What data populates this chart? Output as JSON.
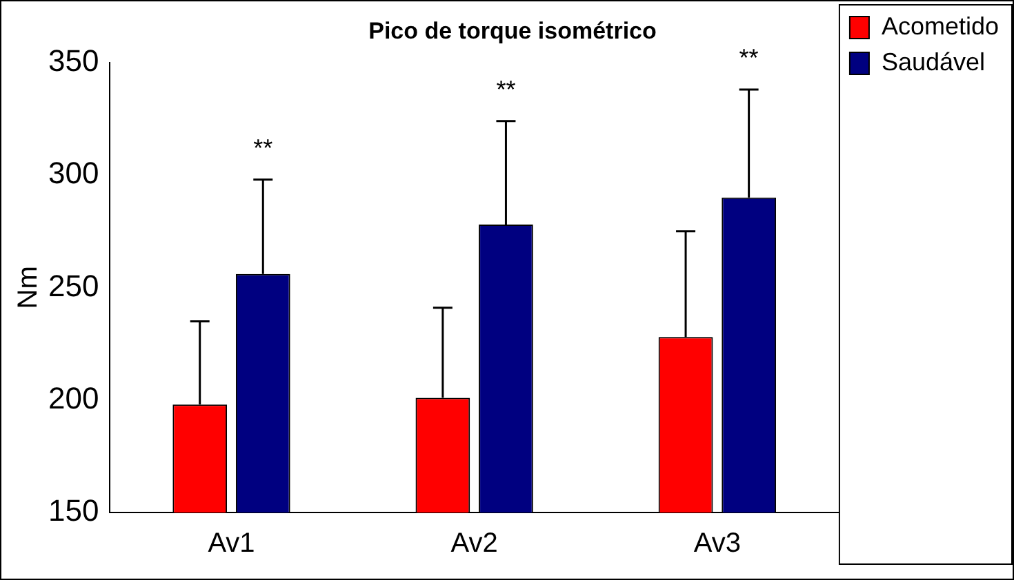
{
  "chart_data": {
    "type": "bar",
    "title": "Pico de torque isométrico",
    "ylabel": "Nm",
    "categories": [
      "Av1",
      "Av2",
      "Av3"
    ],
    "series": [
      {
        "name": "Acometido",
        "color": "#ff0000",
        "values": [
          198,
          201,
          228
        ],
        "errors": [
          [
            198,
            235
          ],
          [
            201,
            241
          ],
          [
            228,
            275
          ]
        ]
      },
      {
        "name": "Saudável",
        "color": "#000080",
        "values": [
          256,
          278,
          290
        ],
        "errors": [
          [
            256,
            298
          ],
          [
            278,
            324
          ],
          [
            290,
            338
          ]
        ]
      }
    ],
    "ylim": [
      150,
      350
    ],
    "yticks": [
      150,
      200,
      250,
      300,
      350
    ],
    "grid": false,
    "legend": "top right",
    "annotations": [
      "**",
      "**",
      "**"
    ]
  }
}
